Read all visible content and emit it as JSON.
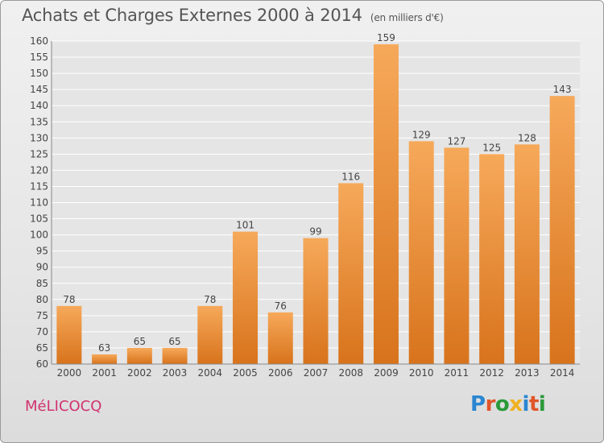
{
  "header": {
    "title": "Achats et Charges Externes 2000 à 2014",
    "subtitle": "(en milliers d'€)"
  },
  "footer": {
    "commune": "MéLICOCQ",
    "logo_text": "Proxiti",
    "logo_letters": [
      {
        "char": "P",
        "color": "#2a86d1"
      },
      {
        "char": "r",
        "color": "#e0552a"
      },
      {
        "char": "o",
        "color": "#2a9a3a"
      },
      {
        "char": "x",
        "color": "#f0b020"
      },
      {
        "char": "i",
        "color": "#2a86d1"
      },
      {
        "char": "t",
        "color": "#e0552a"
      },
      {
        "char": "i",
        "color": "#2a9a3a"
      }
    ]
  },
  "colors": {
    "bar_top": "#f6a95a",
    "bar_bottom": "#d8731c",
    "grid": "#ffffff",
    "text": "#444444"
  },
  "chart_data": {
    "type": "bar",
    "categories": [
      "2000",
      "2001",
      "2002",
      "2003",
      "2004",
      "2005",
      "2006",
      "2007",
      "2008",
      "2009",
      "2010",
      "2011",
      "2012",
      "2013",
      "2014"
    ],
    "values": [
      78,
      63,
      65,
      65,
      78,
      101,
      76,
      99,
      116,
      159,
      129,
      127,
      125,
      128,
      143
    ],
    "ylim": [
      60,
      160
    ],
    "yticks": [
      60,
      65,
      70,
      75,
      80,
      85,
      90,
      95,
      100,
      105,
      110,
      115,
      120,
      125,
      130,
      135,
      140,
      145,
      150,
      155,
      160
    ],
    "grid": true,
    "xlabel": "",
    "ylabel": ""
  }
}
